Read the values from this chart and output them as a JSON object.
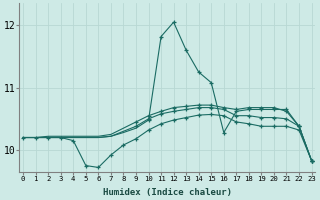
{
  "xlabel": "Humidex (Indice chaleur)",
  "background_color": "#ceeae6",
  "grid_color": "#b8d8d4",
  "line_color": "#1a6b63",
  "x_ticks": [
    0,
    1,
    2,
    3,
    4,
    5,
    6,
    7,
    8,
    9,
    10,
    11,
    12,
    13,
    14,
    15,
    16,
    17,
    18,
    19,
    20,
    21,
    22,
    23
  ],
  "y_ticks": [
    10,
    11,
    12
  ],
  "ylim": [
    9.65,
    12.35
  ],
  "xlim": [
    -0.3,
    23.3
  ],
  "lines": [
    [
      10.2,
      10.2,
      10.2,
      10.2,
      10.15,
      9.75,
      9.72,
      9.92,
      10.08,
      10.18,
      10.32,
      10.42,
      10.48,
      10.52,
      10.56,
      10.57,
      10.55,
      10.45,
      10.42,
      10.38,
      10.38,
      10.38,
      10.32,
      9.83
    ],
    [
      10.2,
      10.2,
      10.2,
      10.2,
      10.2,
      10.2,
      10.2,
      10.22,
      10.28,
      10.35,
      10.48,
      11.82,
      12.05,
      11.6,
      11.25,
      11.08,
      10.28,
      10.62,
      10.65,
      10.65,
      10.65,
      10.65,
      10.38,
      9.83
    ],
    [
      10.2,
      10.2,
      10.22,
      10.22,
      10.22,
      10.22,
      10.22,
      10.25,
      10.35,
      10.45,
      10.55,
      10.62,
      10.68,
      10.7,
      10.72,
      10.72,
      10.68,
      10.65,
      10.68,
      10.68,
      10.68,
      10.62,
      10.38,
      9.83
    ],
    [
      10.2,
      10.2,
      10.2,
      10.2,
      10.2,
      10.2,
      10.2,
      10.22,
      10.3,
      10.38,
      10.5,
      10.58,
      10.62,
      10.65,
      10.68,
      10.68,
      10.65,
      10.55,
      10.55,
      10.52,
      10.52,
      10.5,
      10.38,
      9.83
    ]
  ]
}
